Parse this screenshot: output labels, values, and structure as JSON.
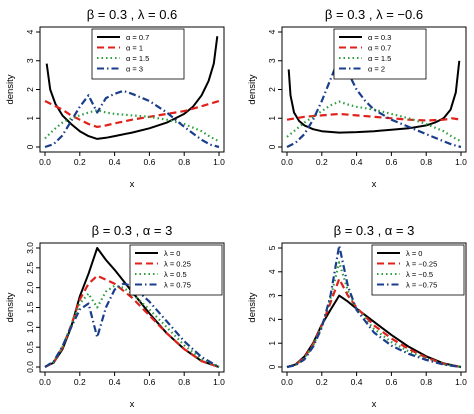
{
  "chart_data": [
    {
      "type": "line",
      "title": "β = 0.3 , λ = 0.6",
      "xlabel": "x",
      "ylabel": "density",
      "xlim": [
        0,
        1
      ],
      "ylim": [
        0,
        4
      ],
      "x_ticks": [
        "0.0",
        "0.2",
        "0.4",
        "0.6",
        "0.8",
        "1.0"
      ],
      "y_ticks": [
        "0",
        "1",
        "2",
        "3",
        "4"
      ],
      "legend_position": "top-center",
      "series": [
        {
          "name": "α = 0.7",
          "color": "#000000",
          "style": "solid",
          "x": [
            0.01,
            0.03,
            0.06,
            0.1,
            0.15,
            0.2,
            0.25,
            0.3,
            0.35,
            0.4,
            0.5,
            0.6,
            0.7,
            0.8,
            0.85,
            0.9,
            0.94,
            0.97,
            0.99
          ],
          "y": [
            2.9,
            2.0,
            1.5,
            1.1,
            0.8,
            0.55,
            0.38,
            0.28,
            0.32,
            0.38,
            0.5,
            0.65,
            0.85,
            1.15,
            1.4,
            1.8,
            2.3,
            2.9,
            3.85
          ]
        },
        {
          "name": "α = 1",
          "color": "#e0201b",
          "style": "dashed",
          "x": [
            0.0,
            0.05,
            0.1,
            0.15,
            0.2,
            0.25,
            0.3,
            0.35,
            0.4,
            0.5,
            0.6,
            0.7,
            0.8,
            0.9,
            1.0
          ],
          "y": [
            1.6,
            1.45,
            1.3,
            1.1,
            0.95,
            0.8,
            0.7,
            0.75,
            0.82,
            0.95,
            1.05,
            1.15,
            1.25,
            1.42,
            1.6
          ]
        },
        {
          "name": "α = 1.5",
          "color": "#2e9e3e",
          "style": "dotted",
          "x": [
            0.0,
            0.05,
            0.1,
            0.15,
            0.2,
            0.25,
            0.3,
            0.35,
            0.4,
            0.5,
            0.6,
            0.7,
            0.8,
            0.9,
            0.95,
            1.0
          ],
          "y": [
            0.3,
            0.6,
            0.85,
            1.0,
            1.1,
            1.2,
            1.28,
            1.2,
            1.15,
            1.1,
            1.05,
            0.95,
            0.8,
            0.55,
            0.35,
            0.2
          ]
        },
        {
          "name": "α = 3",
          "color": "#1a3e8c",
          "style": "dashdot",
          "x": [
            0.0,
            0.05,
            0.1,
            0.15,
            0.2,
            0.25,
            0.3,
            0.35,
            0.4,
            0.45,
            0.5,
            0.6,
            0.7,
            0.8,
            0.9,
            0.95,
            1.0
          ],
          "y": [
            0.0,
            0.1,
            0.4,
            0.9,
            1.4,
            1.8,
            1.2,
            1.7,
            1.85,
            1.95,
            1.85,
            1.6,
            1.2,
            0.7,
            0.25,
            0.08,
            0.0
          ]
        }
      ]
    },
    {
      "type": "line",
      "title": "β = 0.3 , λ = −0.6",
      "xlabel": "x",
      "ylabel": "density",
      "xlim": [
        0,
        1
      ],
      "ylim": [
        0,
        4
      ],
      "x_ticks": [
        "0.0",
        "0.2",
        "0.4",
        "0.6",
        "0.8",
        "1.0"
      ],
      "y_ticks": [
        "0",
        "1",
        "2",
        "3",
        "4"
      ],
      "legend_position": "top-center",
      "series": [
        {
          "name": "α = 0.3",
          "color": "#000000",
          "style": "solid",
          "x": [
            0.01,
            0.02,
            0.04,
            0.07,
            0.1,
            0.15,
            0.2,
            0.3,
            0.4,
            0.5,
            0.6,
            0.7,
            0.8,
            0.85,
            0.9,
            0.94,
            0.97,
            0.99
          ],
          "y": [
            2.7,
            1.8,
            1.2,
            0.9,
            0.75,
            0.62,
            0.55,
            0.5,
            0.52,
            0.55,
            0.6,
            0.65,
            0.75,
            0.85,
            1.0,
            1.3,
            1.9,
            3.0
          ]
        },
        {
          "name": "α = 0.7",
          "color": "#e0201b",
          "style": "dashed",
          "x": [
            0.0,
            0.05,
            0.1,
            0.2,
            0.3,
            0.4,
            0.5,
            0.6,
            0.7,
            0.8,
            0.9,
            0.95,
            1.0
          ],
          "y": [
            0.95,
            1.0,
            1.05,
            1.1,
            1.15,
            1.1,
            1.05,
            1.0,
            0.95,
            0.92,
            0.95,
            1.0,
            0.95
          ]
        },
        {
          "name": "α = 1.5",
          "color": "#2e9e3e",
          "style": "dotted",
          "x": [
            0.0,
            0.05,
            0.1,
            0.15,
            0.2,
            0.25,
            0.3,
            0.35,
            0.4,
            0.5,
            0.6,
            0.7,
            0.8,
            0.9,
            0.95,
            1.0
          ],
          "y": [
            0.35,
            0.6,
            0.85,
            1.05,
            1.25,
            1.45,
            1.58,
            1.48,
            1.4,
            1.3,
            1.15,
            1.0,
            0.8,
            0.55,
            0.35,
            0.2
          ]
        },
        {
          "name": "α = 2",
          "color": "#1a3e8c",
          "style": "dashdot",
          "x": [
            0.0,
            0.05,
            0.1,
            0.15,
            0.2,
            0.25,
            0.3,
            0.35,
            0.4,
            0.45,
            0.5,
            0.6,
            0.7,
            0.8,
            0.9,
            0.95,
            1.0
          ],
          "y": [
            0.0,
            0.15,
            0.45,
            0.95,
            1.6,
            2.35,
            3.1,
            2.6,
            2.0,
            1.6,
            1.3,
            0.95,
            0.7,
            0.45,
            0.2,
            0.08,
            0.0
          ]
        }
      ]
    },
    {
      "type": "line",
      "title": "β = 0.3 , α = 3",
      "xlabel": "x",
      "ylabel": "density",
      "xlim": [
        0,
        1
      ],
      "ylim": [
        0,
        3
      ],
      "x_ticks": [
        "0.0",
        "0.2",
        "0.4",
        "0.6",
        "0.8",
        "1.0"
      ],
      "y_ticks": [
        "0.0",
        "0.5",
        "1.0",
        "1.5",
        "2.0",
        "2.5",
        "3.0"
      ],
      "legend_position": "top-right",
      "series": [
        {
          "name": "λ = 0",
          "color": "#000000",
          "style": "solid",
          "x": [
            0.0,
            0.05,
            0.1,
            0.15,
            0.2,
            0.25,
            0.3,
            0.35,
            0.4,
            0.5,
            0.6,
            0.7,
            0.8,
            0.9,
            1.0
          ],
          "y": [
            0.0,
            0.11,
            0.44,
            1.0,
            1.78,
            2.35,
            3.0,
            2.7,
            2.45,
            1.9,
            1.35,
            0.85,
            0.45,
            0.15,
            0.0
          ]
        },
        {
          "name": "λ = 0.25",
          "color": "#e0201b",
          "style": "dashed",
          "x": [
            0.0,
            0.05,
            0.1,
            0.15,
            0.2,
            0.25,
            0.3,
            0.35,
            0.4,
            0.5,
            0.6,
            0.7,
            0.8,
            0.9,
            1.0
          ],
          "y": [
            0.0,
            0.12,
            0.48,
            1.05,
            1.7,
            2.1,
            2.3,
            2.2,
            2.1,
            1.75,
            1.3,
            0.85,
            0.45,
            0.15,
            0.0
          ]
        },
        {
          "name": "λ = 0.5",
          "color": "#2e9e3e",
          "style": "dotted",
          "x": [
            0.0,
            0.05,
            0.1,
            0.15,
            0.2,
            0.25,
            0.3,
            0.35,
            0.4,
            0.45,
            0.5,
            0.6,
            0.7,
            0.8,
            0.9,
            1.0
          ],
          "y": [
            0.0,
            0.13,
            0.5,
            1.05,
            1.6,
            1.85,
            1.5,
            1.9,
            2.05,
            2.0,
            1.85,
            1.45,
            1.0,
            0.55,
            0.2,
            0.0
          ]
        },
        {
          "name": "λ = 0.75",
          "color": "#1a3e8c",
          "style": "dashdot",
          "x": [
            0.0,
            0.05,
            0.1,
            0.15,
            0.2,
            0.25,
            0.3,
            0.35,
            0.4,
            0.45,
            0.5,
            0.6,
            0.7,
            0.8,
            0.9,
            1.0
          ],
          "y": [
            0.0,
            0.14,
            0.52,
            1.0,
            1.45,
            1.6,
            0.75,
            1.5,
            1.95,
            2.1,
            2.05,
            1.65,
            1.15,
            0.65,
            0.25,
            0.0
          ]
        }
      ]
    },
    {
      "type": "line",
      "title": "β = 0.3 , α = 3",
      "xlabel": "x",
      "ylabel": "density",
      "xlim": [
        0,
        1
      ],
      "ylim": [
        0,
        5
      ],
      "x_ticks": [
        "0.0",
        "0.2",
        "0.4",
        "0.6",
        "0.8",
        "1.0"
      ],
      "y_ticks": [
        "0",
        "1",
        "2",
        "3",
        "4",
        "5"
      ],
      "legend_position": "top-right",
      "series": [
        {
          "name": "λ = 0",
          "color": "#000000",
          "style": "solid",
          "x": [
            0.0,
            0.05,
            0.1,
            0.15,
            0.2,
            0.25,
            0.3,
            0.35,
            0.4,
            0.5,
            0.6,
            0.7,
            0.8,
            0.9,
            1.0
          ],
          "y": [
            0.0,
            0.11,
            0.44,
            1.0,
            1.78,
            2.4,
            3.0,
            2.75,
            2.45,
            1.9,
            1.35,
            0.85,
            0.45,
            0.15,
            0.0
          ]
        },
        {
          "name": "λ = −0.25",
          "color": "#e0201b",
          "style": "dashed",
          "x": [
            0.0,
            0.05,
            0.1,
            0.15,
            0.2,
            0.25,
            0.3,
            0.35,
            0.4,
            0.5,
            0.6,
            0.7,
            0.8,
            0.9,
            1.0
          ],
          "y": [
            0.0,
            0.1,
            0.4,
            0.95,
            1.75,
            2.7,
            3.7,
            3.0,
            2.5,
            1.75,
            1.2,
            0.75,
            0.4,
            0.13,
            0.0
          ]
        },
        {
          "name": "λ = −0.5",
          "color": "#2e9e3e",
          "style": "dotted",
          "x": [
            0.0,
            0.05,
            0.1,
            0.15,
            0.2,
            0.25,
            0.3,
            0.35,
            0.4,
            0.5,
            0.6,
            0.7,
            0.8,
            0.9,
            1.0
          ],
          "y": [
            0.0,
            0.09,
            0.36,
            0.9,
            1.7,
            2.9,
            4.4,
            3.2,
            2.45,
            1.6,
            1.05,
            0.65,
            0.35,
            0.11,
            0.0
          ]
        },
        {
          "name": "λ = −0.75",
          "color": "#1a3e8c",
          "style": "dashdot",
          "x": [
            0.0,
            0.05,
            0.1,
            0.15,
            0.2,
            0.25,
            0.3,
            0.35,
            0.4,
            0.5,
            0.6,
            0.7,
            0.8,
            0.9,
            1.0
          ],
          "y": [
            0.0,
            0.08,
            0.32,
            0.85,
            1.65,
            3.0,
            5.1,
            3.4,
            2.4,
            1.45,
            0.9,
            0.55,
            0.3,
            0.1,
            0.0
          ]
        }
      ]
    }
  ]
}
